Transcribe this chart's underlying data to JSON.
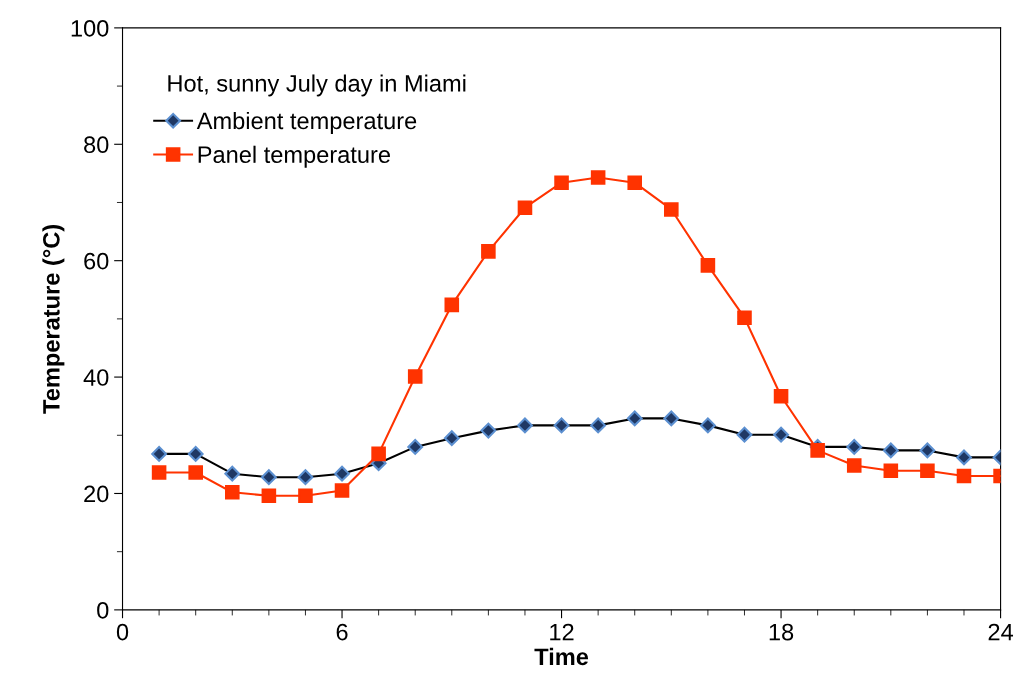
{
  "chart_data": {
    "type": "line",
    "xlabel": "Time",
    "ylabel": "Temperature (°C)",
    "annotations": [
      "Hot, sunny July day in Miami"
    ],
    "x": [
      1,
      2,
      3,
      4,
      5,
      6,
      7,
      8,
      9,
      10,
      11,
      12,
      13,
      14,
      15,
      16,
      17,
      18,
      19,
      20,
      21,
      22,
      23,
      24
    ],
    "series": [
      {
        "name": "Ambient temperature",
        "color": "#1f3864",
        "marker": "diamond",
        "values": [
          26.8,
          26.8,
          23.4,
          22.8,
          22.8,
          23.4,
          25.2,
          28,
          29.5,
          30.8,
          31.7,
          31.7,
          31.7,
          32.9,
          32.9,
          31.7,
          30.1,
          30.1,
          28,
          28,
          27.4,
          27.4,
          26.2,
          26.2
        ]
      },
      {
        "name": "Panel temperature",
        "color": "#ff3300",
        "marker": "square",
        "values": [
          23.6,
          23.6,
          20.2,
          19.6,
          19.6,
          20.5,
          26.8,
          40.1,
          52.4,
          61.6,
          69.1,
          73.4,
          74.3,
          73.4,
          68.8,
          59.2,
          50.2,
          36.7,
          27.4,
          24.8,
          23.9,
          23.9,
          23,
          23
        ]
      }
    ],
    "xlim": [
      0,
      24
    ],
    "xticks": [
      0,
      6,
      12,
      18,
      24
    ],
    "ylim": [
      0,
      100
    ],
    "yticks": [
      0,
      20,
      40,
      60,
      80,
      100
    ],
    "grid": false,
    "legend": "top left",
    "line_style": "solid"
  }
}
